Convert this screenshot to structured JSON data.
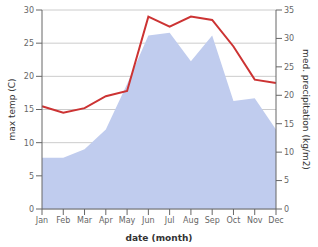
{
  "chart_data": {
    "type": "line",
    "categories": [
      "Jan",
      "Feb",
      "Mar",
      "Apr",
      "May",
      "Jun",
      "Jul",
      "Aug",
      "Sep",
      "Oct",
      "Nov",
      "Dec"
    ],
    "series": [
      {
        "type": "area",
        "axis": "y2",
        "color": "#c0ccee",
        "values": [
          9.0,
          9.0,
          10.5,
          14.0,
          22.0,
          30.5,
          31.0,
          26.0,
          30.5,
          19.0,
          19.5,
          14.0
        ]
      },
      {
        "type": "line",
        "color": "#cc3333",
        "values": [
          15.5,
          14.5,
          15.2,
          17.0,
          17.8,
          29.0,
          27.5,
          29.0,
          28.5,
          24.5,
          19.5,
          19.0
        ]
      }
    ],
    "xlabel": "date (month)",
    "ylabel": "max temp (C)",
    "y2label": "med. precipitation (kg/m2)",
    "ylim": [
      0,
      30
    ],
    "yticks": [
      0,
      5,
      10,
      15,
      20,
      25,
      30
    ],
    "y2lim": [
      0,
      35
    ],
    "y2ticks": [
      0,
      5,
      10,
      15,
      20,
      25,
      30,
      35
    ],
    "grid": true
  }
}
